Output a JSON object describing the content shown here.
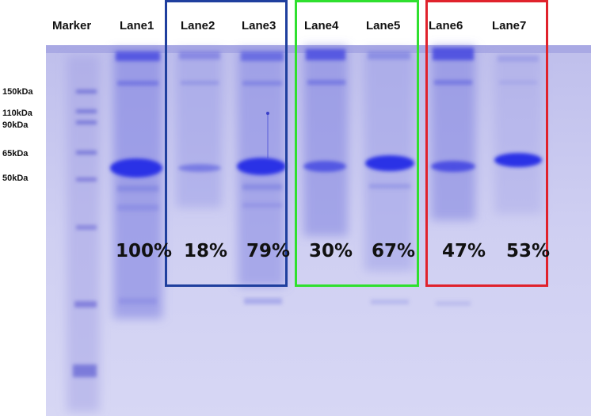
{
  "lane_labels": [
    "Marker",
    "Lane1",
    "Lane2",
    "Lane3",
    "Lane4",
    "Lane5",
    "Lane6",
    "Lane7"
  ],
  "marker_labels": [
    "150kDa",
    "110kDa",
    "90kDa",
    "65kDa",
    "50kDa"
  ],
  "percentages": [
    "100%",
    "18%",
    "79%",
    "30%",
    "67%",
    "47%",
    "53%"
  ],
  "colors": {
    "gel": "#c9c8ee",
    "band": "#3a40e0",
    "box_blue": "#1f3f9e",
    "box_green": "#2fe02f",
    "box_red": "#e0222c"
  }
}
